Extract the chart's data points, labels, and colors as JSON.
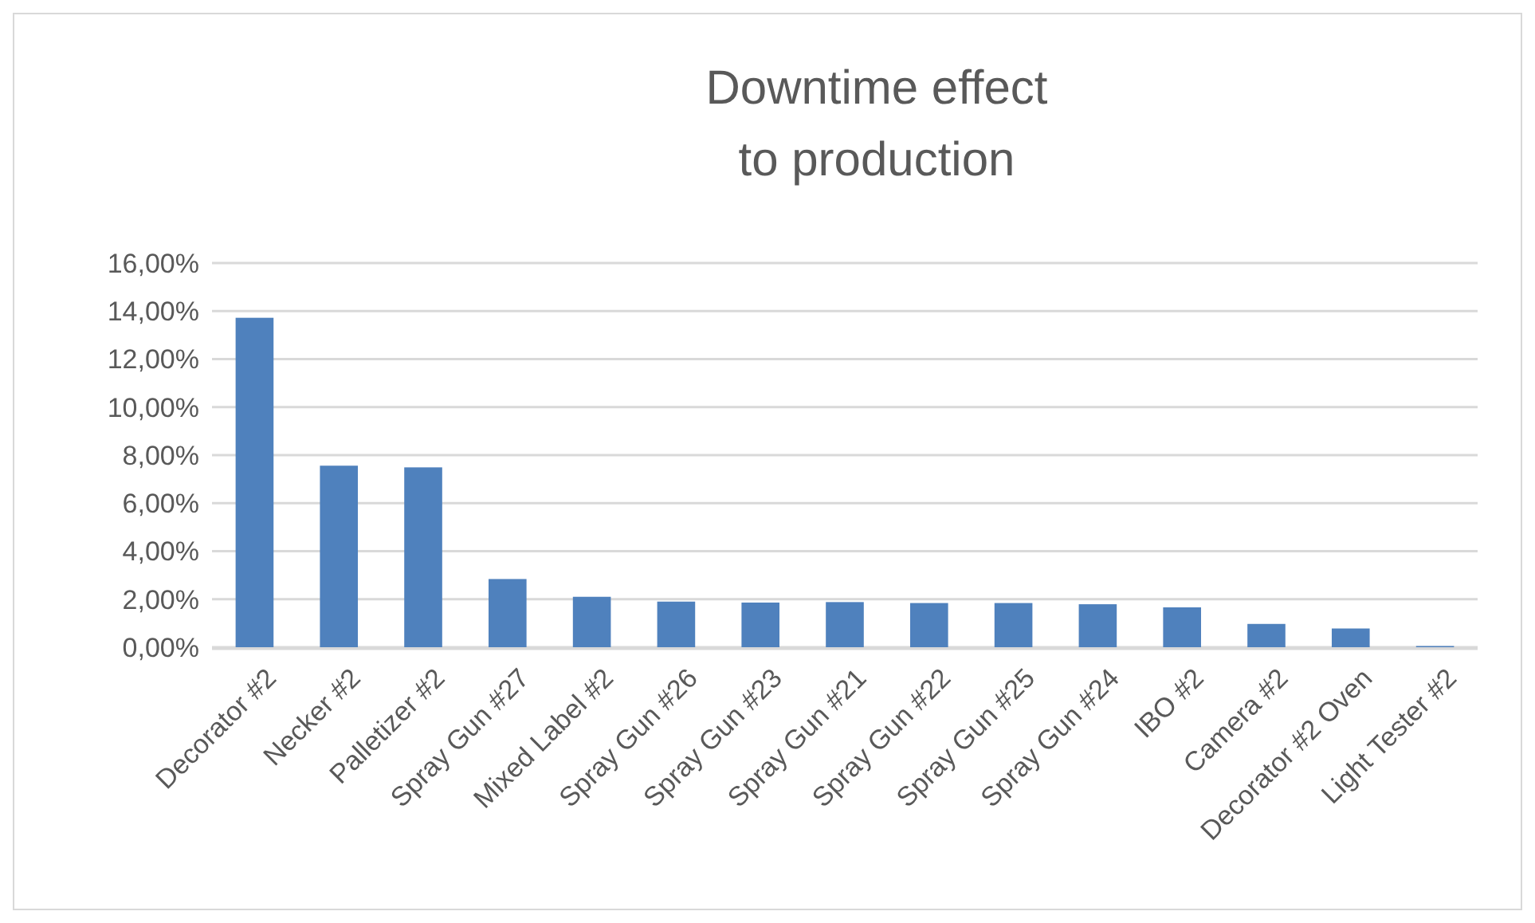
{
  "chart_data": {
    "type": "bar",
    "title": "Downtime effect to production",
    "categories": [
      "Decorator #2",
      "Necker #2",
      "Palletizer #2",
      "Spray Gun #27",
      "Mixed Label #2",
      "Spray Gun #26",
      "Spray Gun #23",
      "Spray Gun #21",
      "Spray Gun #22",
      "Spray Gun #25",
      "Spray Gun #24",
      "IBO #2",
      "Camera #2",
      "Decorator #2 Oven",
      "Light Tester #2"
    ],
    "values": [
      13.72,
      7.56,
      7.49,
      2.84,
      2.1,
      1.9,
      1.86,
      1.88,
      1.84,
      1.84,
      1.79,
      1.66,
      0.97,
      0.78,
      0.05
    ],
    "color": "#4f81bd",
    "ylim": [
      0,
      16
    ],
    "yticks": [
      {
        "value": 0,
        "label": "0,00%"
      },
      {
        "value": 2,
        "label": "2,00%"
      },
      {
        "value": 4,
        "label": "4,00%"
      },
      {
        "value": 6,
        "label": "6,00%"
      },
      {
        "value": 8,
        "label": "8,00%"
      },
      {
        "value": 10,
        "label": "10,00%"
      },
      {
        "value": 12,
        "label": "12,00%"
      },
      {
        "value": 14,
        "label": "14,00%"
      },
      {
        "value": 16,
        "label": "16,00%"
      }
    ],
    "grid": true
  }
}
